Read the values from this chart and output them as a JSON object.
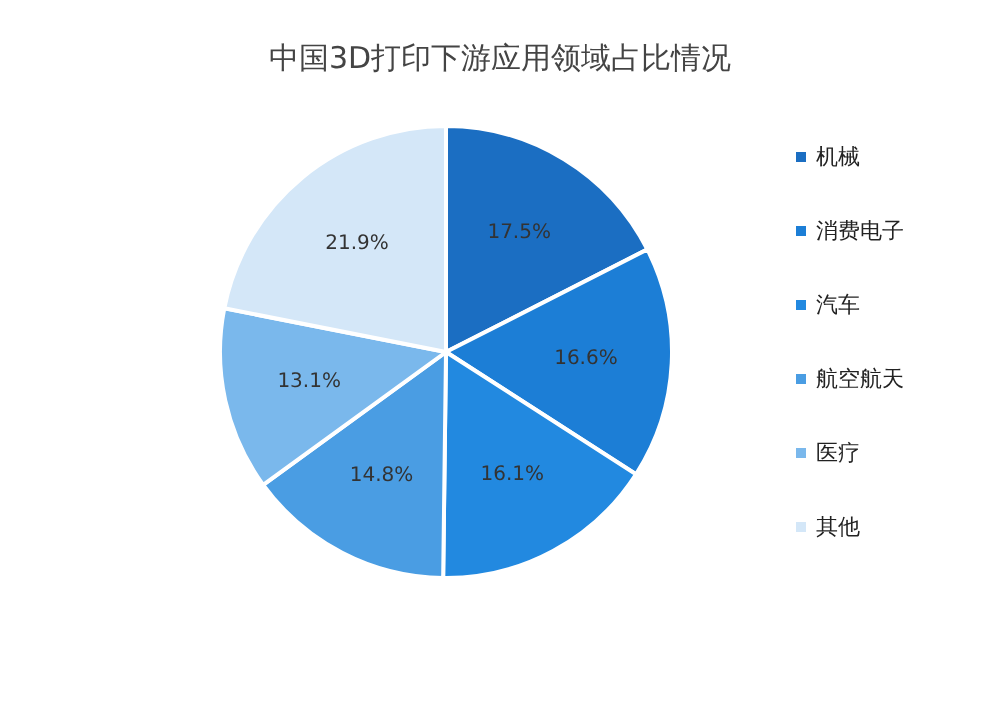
{
  "chart_data": {
    "type": "pie",
    "title": "中国3D打印下游应用领域占比情况",
    "categories": [
      "机械",
      "消费电子",
      "汽车",
      "航空航天",
      "医疗",
      "其他"
    ],
    "values": [
      17.5,
      16.6,
      16.1,
      14.8,
      13.1,
      21.9
    ],
    "colors": [
      "#1b6ec2",
      "#1c7ed6",
      "#2289e0",
      "#4a9de3",
      "#7ab8ec",
      "#d4e7f8"
    ],
    "value_labels": [
      "17.5%",
      "16.6%",
      "16.1%",
      "14.8%",
      "13.1%",
      "21.9%"
    ],
    "legend": "right"
  }
}
